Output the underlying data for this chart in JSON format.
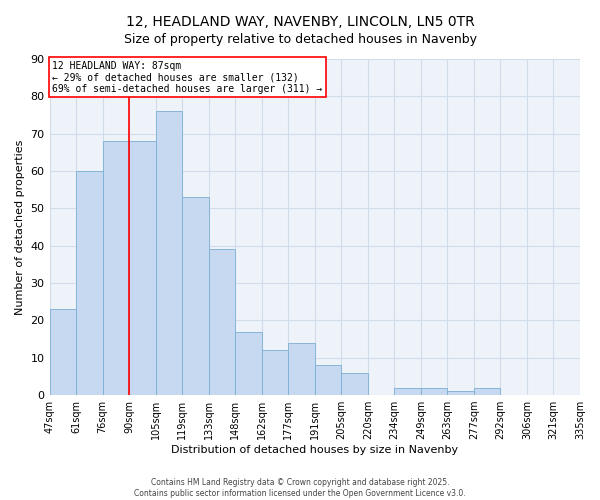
{
  "title": "12, HEADLAND WAY, NAVENBY, LINCOLN, LN5 0TR",
  "subtitle": "Size of property relative to detached houses in Navenby",
  "xlabel": "Distribution of detached houses by size in Navenby",
  "ylabel": "Number of detached properties",
  "tick_labels": [
    "47sqm",
    "61sqm",
    "76sqm",
    "90sqm",
    "105sqm",
    "119sqm",
    "133sqm",
    "148sqm",
    "162sqm",
    "177sqm",
    "191sqm",
    "205sqm",
    "220sqm",
    "234sqm",
    "249sqm",
    "263sqm",
    "277sqm",
    "292sqm",
    "306sqm",
    "321sqm",
    "335sqm"
  ],
  "bin_values": [
    23,
    60,
    68,
    68,
    76,
    53,
    39,
    17,
    12,
    14,
    8,
    6,
    0,
    2,
    2,
    1,
    2,
    0,
    0,
    0
  ],
  "bar_color": "#c6d9f0",
  "bar_edge_color": "#7bafd4",
  "vline_position": 3,
  "vline_color": "red",
  "annotation_text": "12 HEADLAND WAY: 87sqm\n← 29% of detached houses are smaller (132)\n69% of semi-detached houses are larger (311) →",
  "annotation_box_color": "white",
  "annotation_box_edge_color": "red",
  "ylim": [
    0,
    90
  ],
  "yticks": [
    0,
    10,
    20,
    30,
    40,
    50,
    60,
    70,
    80,
    90
  ],
  "background_color": "#eef3fa",
  "grid_color": "#d0dce8",
  "footer_line1": "Contains HM Land Registry data © Crown copyright and database right 2025.",
  "footer_line2": "Contains public sector information licensed under the Open Government Licence v3.0.",
  "title_fontsize": 10,
  "annotation_fontsize": 7,
  "ylabel_fontsize": 8,
  "xlabel_fontsize": 8,
  "tick_fontsize": 7
}
